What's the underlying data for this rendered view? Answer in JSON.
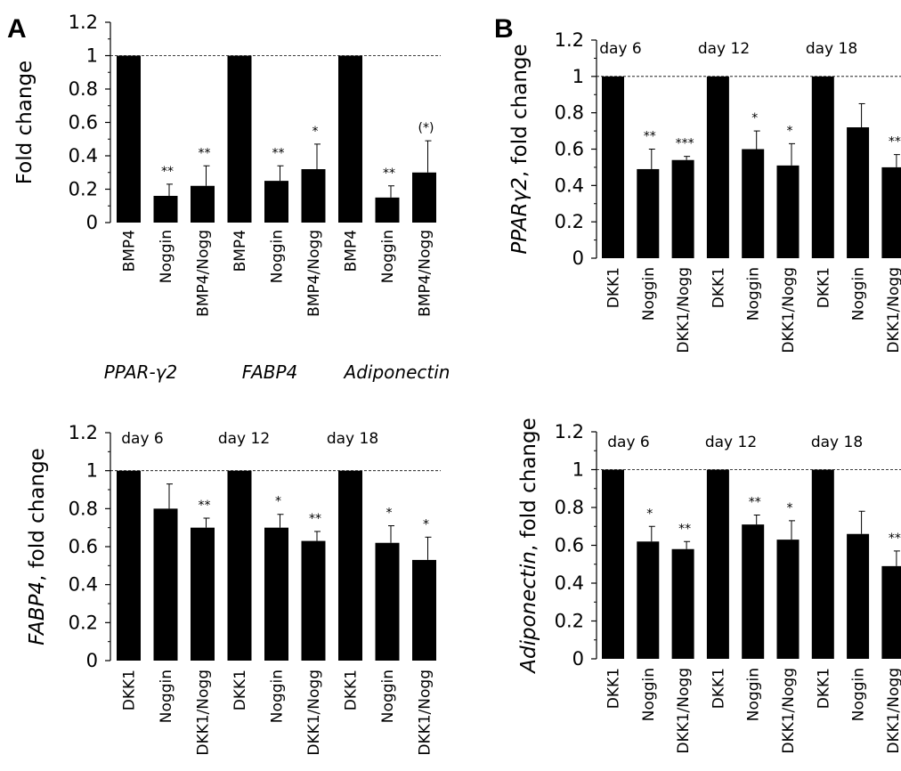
{
  "figure": {
    "panel_letters": [
      "A",
      "B"
    ]
  },
  "chart_data": [
    {
      "type": "bar",
      "panel": "A",
      "ylabel": "Fold change",
      "ylim": [
        0,
        1.2
      ],
      "yticks": [
        "0",
        "0.2",
        "0.4",
        "0.6",
        "0.8",
        "1",
        "1.2"
      ],
      "reference_line": 1,
      "categories": [
        "BMP4",
        "Noggin",
        "BMP4/Nogg",
        "BMP4",
        "Noggin",
        "BMP4/Nogg",
        "BMP4",
        "Noggin",
        "BMP4/Nogg"
      ],
      "values": [
        1,
        0.16,
        0.22,
        1,
        0.25,
        0.32,
        1,
        0.15,
        0.3
      ],
      "errors": [
        0,
        0.07,
        0.12,
        0,
        0.09,
        0.15,
        0,
        0.07,
        0.19
      ],
      "significance": [
        "",
        "**",
        "**",
        "",
        "**",
        "*",
        "",
        "**",
        "(*)"
      ],
      "groups": [
        "PPAR-γ2",
        "FABP4",
        "Adiponectin"
      ]
    },
    {
      "type": "bar",
      "panel": "B",
      "ylabel_gene": "PPARγ2",
      "ylabel_rest": ", fold change",
      "ylim": [
        0,
        1.2
      ],
      "yticks": [
        "0",
        "0.2",
        "0.4",
        "0.6",
        "0.8",
        "1",
        "1.2"
      ],
      "reference_line": 1,
      "groups": [
        "day 6",
        "day 12",
        "day 18"
      ],
      "categories": [
        "DKK1",
        "Noggin",
        "DKK1/Nogg",
        "DKK1",
        "Noggin",
        "DKK1/Nogg",
        "DKK1",
        "Noggin",
        "DKK1/Nogg"
      ],
      "values": [
        1,
        0.49,
        0.54,
        1,
        0.6,
        0.51,
        1,
        0.72,
        0.5
      ],
      "errors": [
        0,
        0.11,
        0.02,
        0,
        0.1,
        0.12,
        0,
        0.13,
        0.07
      ],
      "significance": [
        "",
        "**",
        "***",
        "",
        "*",
        "*",
        "",
        "",
        "**"
      ]
    },
    {
      "type": "bar",
      "panel": "",
      "ylabel_gene": "FABP4",
      "ylabel_rest": ", fold change",
      "ylim": [
        0,
        1.2
      ],
      "yticks": [
        "0",
        "0.2",
        "0.4",
        "0.6",
        "0.8",
        "1",
        "1.2"
      ],
      "reference_line": 1,
      "groups": [
        "day 6",
        "day 12",
        "day 18"
      ],
      "categories": [
        "DKK1",
        "Noggin",
        "DKK1/Nogg",
        "DKK1",
        "Noggin",
        "DKK1/Nogg",
        "DKK1",
        "Noggin",
        "DKK1/Nogg"
      ],
      "values": [
        1,
        0.8,
        0.7,
        1,
        0.7,
        0.63,
        1,
        0.62,
        0.53
      ],
      "errors": [
        0,
        0.13,
        0.05,
        0,
        0.07,
        0.05,
        0,
        0.09,
        0.12
      ],
      "significance": [
        "",
        "",
        "**",
        "",
        "*",
        "**",
        "",
        "*",
        "*"
      ]
    },
    {
      "type": "bar",
      "panel": "",
      "ylabel_gene": "Adiponectin",
      "ylabel_rest": ", fold change",
      "ylim": [
        0,
        1.2
      ],
      "yticks": [
        "0",
        "0.2",
        "0.4",
        "0.6",
        "0.8",
        "1",
        "1.2"
      ],
      "reference_line": 1,
      "groups": [
        "day 6",
        "day 12",
        "day 18"
      ],
      "categories": [
        "DKK1",
        "Noggin",
        "DKK1/Nogg",
        "DKK1",
        "Noggin",
        "DKK1/Nogg",
        "DKK1",
        "Noggin",
        "DKK1/Nogg"
      ],
      "values": [
        1,
        0.62,
        0.58,
        1,
        0.71,
        0.63,
        1,
        0.66,
        0.49
      ],
      "errors": [
        0,
        0.08,
        0.04,
        0,
        0.05,
        0.1,
        0,
        0.12,
        0.08
      ],
      "significance": [
        "",
        "*",
        "**",
        "",
        "**",
        "*",
        "",
        "",
        "**"
      ]
    }
  ]
}
